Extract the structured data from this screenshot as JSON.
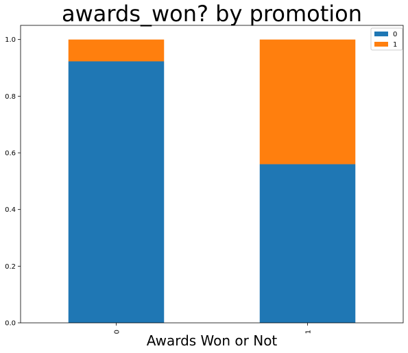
{
  "chart_data": {
    "type": "bar",
    "stacked": true,
    "title": "awards_won? by promotion",
    "xlabel": "Awards Won or Not",
    "ylabel": "",
    "categories": [
      "0",
      "1"
    ],
    "series": [
      {
        "name": "0",
        "values": [
          0.923,
          0.56
        ],
        "color": "#1f77b4"
      },
      {
        "name": "1",
        "values": [
          0.077,
          0.44
        ],
        "color": "#ff7f0e"
      }
    ],
    "ylim": [
      0,
      1.05
    ],
    "yticks": [
      "0.0",
      "0.2",
      "0.4",
      "0.6",
      "0.8",
      "1.0"
    ],
    "legend_position": "top-right",
    "grid": false
  }
}
